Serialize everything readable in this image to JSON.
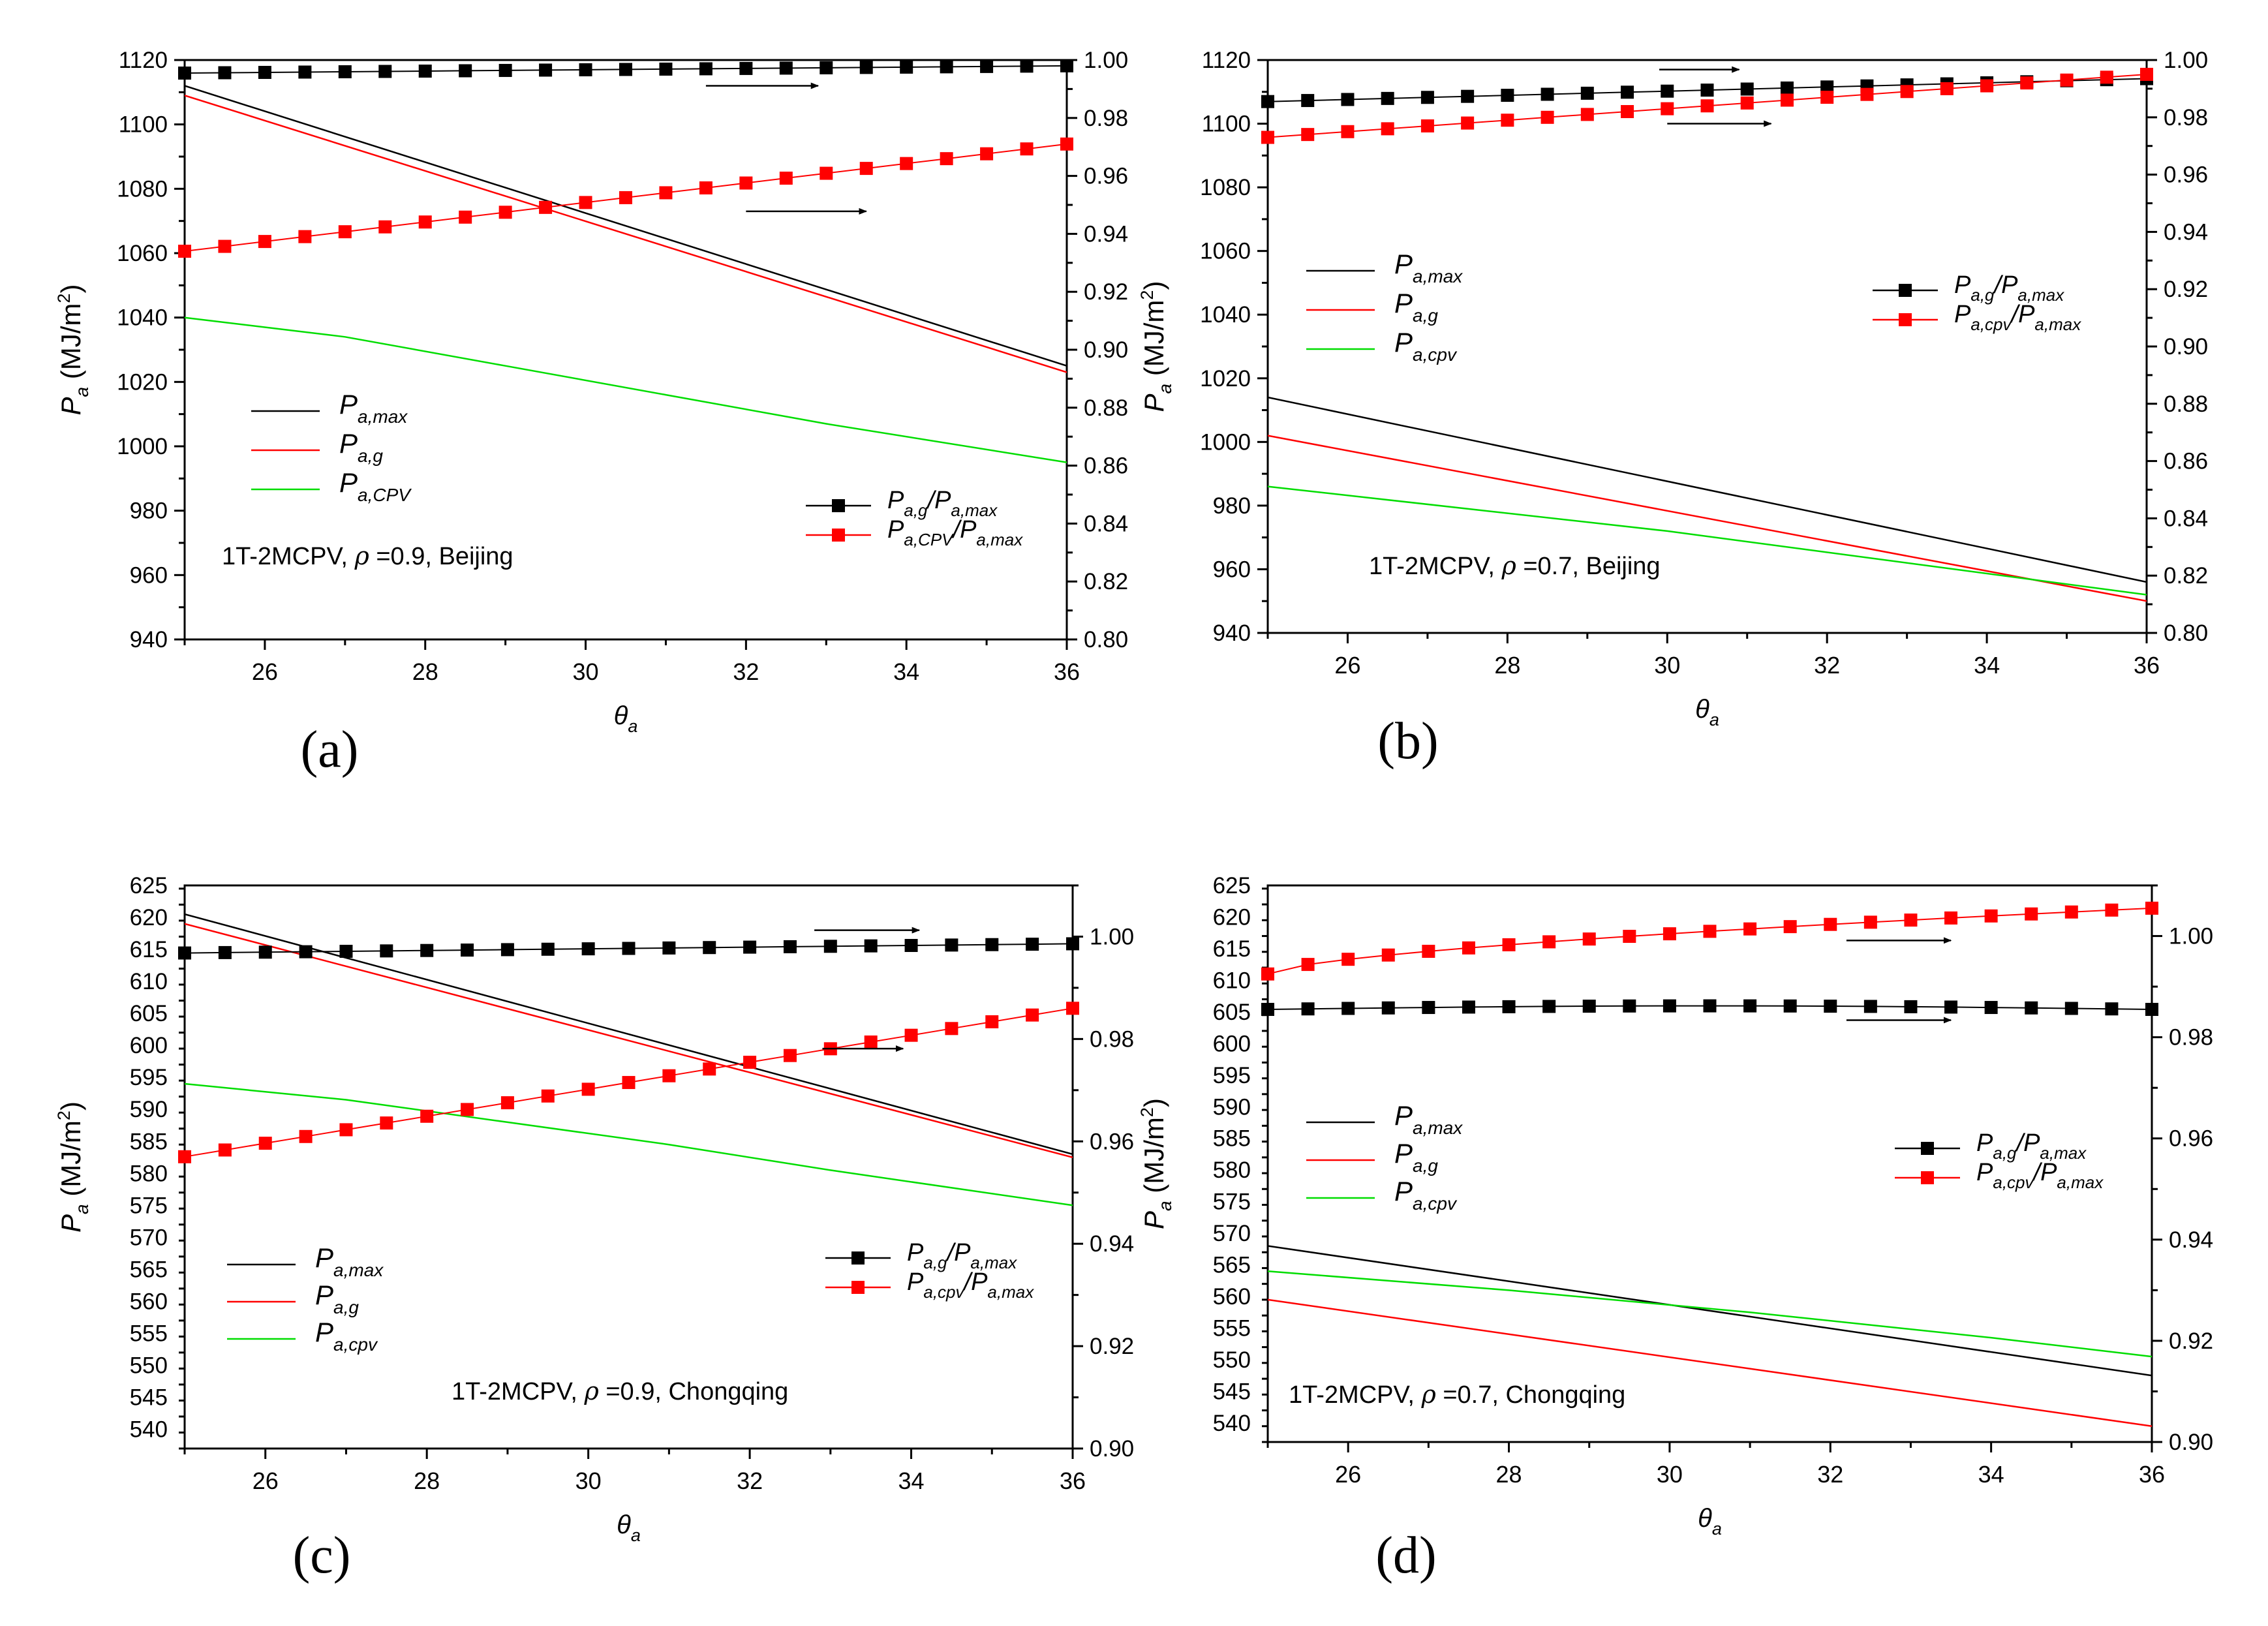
{
  "figure": {
    "x_symbol": "θ",
    "x_sub": "a",
    "y_symbol": "P",
    "y_sub": "a",
    "y_unit": "(MJ/m",
    "y_unit_sup": "2",
    "y_unit_close": ")"
  },
  "chart_data": [
    {
      "type": "line",
      "panel_label": "(a)",
      "annotation": {
        "prefix": "1T-2MCPV, ",
        "rho_symbol": "ρ",
        "rho_text": " =0.9, Beijing"
      },
      "xlabel": "θa",
      "ylabel": "Pa (MJ/m2)",
      "xlim": [
        25,
        36
      ],
      "xticks": [
        26,
        28,
        30,
        32,
        34,
        36
      ],
      "ylim_left": [
        940,
        1120
      ],
      "yticks_left": [
        940,
        960,
        980,
        1000,
        1020,
        1040,
        1060,
        1080,
        1100,
        1120
      ],
      "ylim_right": [
        0.8,
        1.0
      ],
      "yticks_right": [
        "0.80",
        "0.82",
        "0.84",
        "0.86",
        "0.88",
        "0.90",
        "0.92",
        "0.94",
        "0.96",
        "0.98",
        "1.00"
      ],
      "legend_left": [
        {
          "main": "P",
          "sub": "a,max",
          "color": "#000000"
        },
        {
          "main": "P",
          "sub": "a,g",
          "color": "#ff0000"
        },
        {
          "main": "P",
          "sub": "a,CPV",
          "color": "#00dd00"
        }
      ],
      "legend_right": [
        {
          "m1": "P",
          "s1": "a,g",
          "m2": "/P",
          "s2": "a,max",
          "color": "#000000"
        },
        {
          "m1": "P",
          "s1": "a,CPV",
          "m2": "/P",
          "s2": "a,max",
          "color": "#ff0000"
        }
      ],
      "lines": [
        {
          "name": "Pa,max",
          "color": "#000000",
          "x": [
            25,
            36
          ],
          "y": [
            1112,
            1025
          ]
        },
        {
          "name": "Pa,g",
          "color": "#ff0000",
          "x": [
            25,
            36
          ],
          "y": [
            1109,
            1023
          ]
        },
        {
          "name": "Pa,CPV",
          "color": "#00dd00",
          "x": [
            25,
            27,
            29,
            31,
            33,
            36
          ],
          "y": [
            1040,
            1034,
            1025,
            1016,
            1007,
            995
          ]
        }
      ],
      "ratio_x": [
        25,
        25.5,
        26,
        26.5,
        27,
        27.5,
        28,
        28.5,
        29,
        29.5,
        30,
        30.5,
        31,
        31.5,
        32,
        32.5,
        33,
        33.5,
        34,
        34.5,
        35,
        35.5,
        36
      ],
      "ratios": [
        {
          "name": "Pa,g/Pa,max",
          "color": "#000000",
          "start": 0.9955,
          "end": 0.998
        },
        {
          "name": "Pa,CPV/Pa,max",
          "color": "#ff0000",
          "start": 0.934,
          "end": 0.971
        }
      ],
      "arrows": [
        {
          "x1": 31.5,
          "x2": 32.9,
          "y": 1112
        },
        {
          "x1": 32.0,
          "x2": 33.5,
          "y": 1073
        }
      ]
    },
    {
      "type": "line",
      "panel_label": "(b)",
      "annotation": {
        "prefix": "1T-2MCPV,  ",
        "rho_symbol": "ρ",
        "rho_text": " =0.7, Beijing"
      },
      "xlabel": "θa",
      "ylabel": "Pa (MJ/m2)",
      "xlim": [
        25,
        36
      ],
      "xticks": [
        26,
        28,
        30,
        32,
        34,
        36
      ],
      "ylim_left": [
        940,
        1120
      ],
      "yticks_left": [
        940,
        960,
        980,
        1000,
        1020,
        1040,
        1060,
        1080,
        1100,
        1120
      ],
      "ylim_right": [
        0.8,
        1.0
      ],
      "yticks_right": [
        "0.80",
        "0.82",
        "0.84",
        "0.86",
        "0.88",
        "0.90",
        "0.92",
        "0.94",
        "0.96",
        "0.98",
        "1.00"
      ],
      "legend_left": [
        {
          "main": "P",
          "sub": "a,max",
          "color": "#000000"
        },
        {
          "main": "P",
          "sub": "a,g",
          "color": "#ff0000"
        },
        {
          "main": "P",
          "sub": "a,cpv",
          "color": "#00dd00"
        }
      ],
      "legend_right": [
        {
          "m1": "P",
          "s1": "a,g",
          "m2": "/P",
          "s2": "a,max",
          "color": "#000000"
        },
        {
          "m1": "P",
          "s1": "a,cpv",
          "m2": "/P",
          "s2": "a,max",
          "color": "#ff0000"
        }
      ],
      "lines": [
        {
          "name": "Pa,max",
          "color": "#000000",
          "x": [
            25,
            36
          ],
          "y": [
            1014,
            956
          ]
        },
        {
          "name": "Pa,g",
          "color": "#ff0000",
          "x": [
            25,
            36
          ],
          "y": [
            1002,
            950
          ]
        },
        {
          "name": "Pa,cpv",
          "color": "#00dd00",
          "x": [
            25,
            30,
            36
          ],
          "y": [
            986,
            972,
            952
          ]
        }
      ],
      "ratio_x": [
        25,
        25.5,
        26,
        26.5,
        27,
        27.5,
        28,
        28.5,
        29,
        29.5,
        30,
        30.5,
        31,
        31.5,
        32,
        32.5,
        33,
        33.5,
        34,
        34.5,
        35,
        35.5,
        36
      ],
      "ratios": [
        {
          "name": "Pa,g/Pa,max",
          "color": "#000000",
          "start": 0.9855,
          "end": 0.9935
        },
        {
          "name": "Pa,cpv/Pa,max",
          "color": "#ff0000",
          "start": 0.973,
          "end": 0.995
        }
      ],
      "arrows": [
        {
          "x1": 29.9,
          "x2": 30.9,
          "y": 1117
        },
        {
          "x1": 30.0,
          "x2": 31.3,
          "y": 1100
        }
      ]
    },
    {
      "type": "line",
      "panel_label": "(c)",
      "annotation": {
        "prefix": "1T-2MCPV, ",
        "rho_symbol": "ρ",
        "rho_text": " =0.9, Chongqing"
      },
      "xlabel": "θa",
      "ylabel": "Pa (MJ/m2)",
      "xlim": [
        25,
        36
      ],
      "xticks": [
        26,
        28,
        30,
        32,
        34,
        36
      ],
      "ylim_left": [
        537,
        625
      ],
      "yticks_left": [
        540,
        545,
        550,
        555,
        560,
        565,
        570,
        575,
        580,
        585,
        590,
        595,
        600,
        605,
        610,
        615,
        620,
        625
      ],
      "ylim_right": [
        0.9,
        1.01
      ],
      "yticks_right": [
        "0.90",
        "0.92",
        "0.94",
        "0.96",
        "0.98",
        "1.00"
      ],
      "legend_left": [
        {
          "main": "P",
          "sub": "a,max",
          "color": "#000000"
        },
        {
          "main": "P",
          "sub": "a,g",
          "color": "#ff0000"
        },
        {
          "main": "P",
          "sub": "a,cpv",
          "color": "#00dd00"
        }
      ],
      "legend_right": [
        {
          "m1": "P",
          "s1": "a,g",
          "m2": "/P",
          "s2": "a,max",
          "color": "#000000"
        },
        {
          "m1": "P",
          "s1": "a,cpv",
          "m2": "/P",
          "s2": "a,max",
          "color": "#ff0000"
        }
      ],
      "lines": [
        {
          "name": "Pa,max",
          "color": "#000000",
          "x": [
            25,
            36
          ],
          "y": [
            620.5,
            583
          ]
        },
        {
          "name": "Pa,g",
          "color": "#ff0000",
          "x": [
            25,
            36
          ],
          "y": [
            619,
            582.5
          ]
        },
        {
          "name": "Pa,cpv",
          "color": "#00dd00",
          "x": [
            25,
            27,
            29,
            31,
            33,
            36
          ],
          "y": [
            594,
            591.5,
            588,
            584.5,
            580.5,
            575
          ]
        }
      ],
      "ratio_x": [
        25,
        25.5,
        26,
        26.5,
        27,
        27.5,
        28,
        28.5,
        29,
        29.5,
        30,
        30.5,
        31,
        31.5,
        32,
        32.5,
        33,
        33.5,
        34,
        34.5,
        35,
        35.5,
        36
      ],
      "ratios": [
        {
          "name": "Pa,g/Pa,max",
          "color": "#000000",
          "start": 0.9968,
          "end": 0.9986
        },
        {
          "name": "Pa,cpv/Pa,max",
          "color": "#ff0000",
          "start": 0.957,
          "end": 0.986
        }
      ],
      "arrows": [
        {
          "x1": 32.8,
          "x2": 34.1,
          "y": 618
        },
        {
          "x1": 32.9,
          "x2": 33.9,
          "y": 599.5
        }
      ]
    },
    {
      "type": "line",
      "panel_label": "(d)",
      "annotation": {
        "prefix": "1T-2MCPV, ",
        "rho_symbol": "ρ",
        "rho_text": " =0.7, Chongqing"
      },
      "xlabel": "θa",
      "ylabel": "Pa (MJ/m2)",
      "xlim": [
        25,
        36
      ],
      "xticks": [
        26,
        28,
        30,
        32,
        34,
        36
      ],
      "ylim_left": [
        537,
        625
      ],
      "yticks_left": [
        540,
        545,
        550,
        555,
        560,
        565,
        570,
        575,
        580,
        585,
        590,
        595,
        600,
        605,
        610,
        615,
        620,
        625
      ],
      "ylim_right": [
        0.9,
        1.01
      ],
      "yticks_right": [
        "0.90",
        "0.92",
        "0.94",
        "0.96",
        "0.98",
        "1.00"
      ],
      "legend_left": [
        {
          "main": "P",
          "sub": "a,max",
          "color": "#000000"
        },
        {
          "main": "P",
          "sub": "a,g",
          "color": "#ff0000"
        },
        {
          "main": "P",
          "sub": "a,cpv",
          "color": "#00dd00"
        }
      ],
      "legend_right": [
        {
          "m1": "P",
          "s1": "a,g",
          "m2": "/P",
          "s2": "a,max",
          "color": "#000000"
        },
        {
          "m1": "P",
          "s1": "a,cpv",
          "m2": "/P",
          "s2": "a,max",
          "color": "#ff0000"
        }
      ],
      "lines": [
        {
          "name": "Pa,max",
          "color": "#000000",
          "x": [
            25,
            36
          ],
          "y": [
            568,
            547.5
          ]
        },
        {
          "name": "Pa,g",
          "color": "#ff0000",
          "x": [
            25,
            36
          ],
          "y": [
            559.5,
            539.5
          ]
        },
        {
          "name": "Pa,cpv",
          "color": "#00dd00",
          "x": [
            25,
            28,
            31,
            34,
            36
          ],
          "y": [
            564,
            561,
            557.5,
            553.5,
            550.5
          ]
        }
      ],
      "ratio_x": [
        25,
        25.5,
        26,
        26.5,
        27,
        27.5,
        28,
        28.5,
        29,
        29.5,
        30,
        30.5,
        31,
        31.5,
        32,
        32.5,
        33,
        33.5,
        34,
        34.5,
        35,
        35.5,
        36
      ],
      "ratios": [
        {
          "name": "Pa,g/Pa,max",
          "color": "#000000",
          "start": 0.9855,
          "end": 0.9855,
          "peak": 0.9862
        },
        {
          "name": "Pa,cpv/Pa,max",
          "color": "#ff0000",
          "start": 0.9925,
          "end": 1.0055,
          "curve": 1.6
        }
      ],
      "arrows": [
        {
          "x1": 32.2,
          "x2": 33.5,
          "y": 616.3
        },
        {
          "x1": 32.2,
          "x2": 33.5,
          "y": 603.7
        }
      ]
    }
  ]
}
